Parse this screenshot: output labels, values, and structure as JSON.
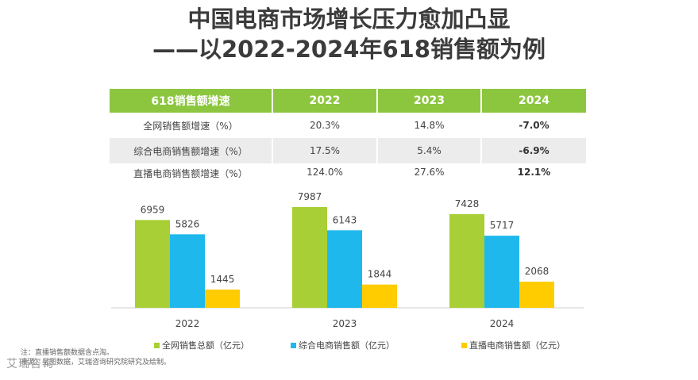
{
  "title": {
    "line1": "中国电商市场增长压力愈加凸显",
    "line2": "——以2022-2024年618销售额为例"
  },
  "table": {
    "header": [
      "618销售额增速",
      "2022",
      "2023",
      "2024"
    ],
    "rows": [
      {
        "label": "全网销售额增速（%）",
        "values": [
          "20.3%",
          "14.8%",
          "-7.0%"
        ]
      },
      {
        "label": "综合电商销售额增速（%）",
        "values": [
          "17.5%",
          "5.4%",
          "-6.9%"
        ]
      },
      {
        "label": "直播电商销售额增速（%）",
        "values": [
          "124.0%",
          "27.6%",
          "12.1%"
        ]
      }
    ]
  },
  "chart_data": {
    "type": "bar",
    "title": "",
    "xlabel": "",
    "ylabel": "",
    "categories": [
      "2022",
      "2023",
      "2024"
    ],
    "series": [
      {
        "name": "全网销售总额（亿元）",
        "color": "#a8cf35",
        "values": [
          6959,
          7987,
          7428
        ]
      },
      {
        "name": "综合电商销售额（亿元）",
        "color": "#1fb8ec",
        "values": [
          5826,
          6143,
          5717
        ]
      },
      {
        "name": "直播电商销售额（亿元）",
        "color": "#ffcc00",
        "values": [
          1445,
          1844,
          2068
        ]
      }
    ],
    "ylim": [
      0,
      8300
    ],
    "legend": "bottom"
  },
  "footer": {
    "note": "注：直播销售额数据含点淘。",
    "source": "来源：星图数据，艾瑞咨询研究院研究及绘制。"
  },
  "watermark": "艾瑞咨询"
}
